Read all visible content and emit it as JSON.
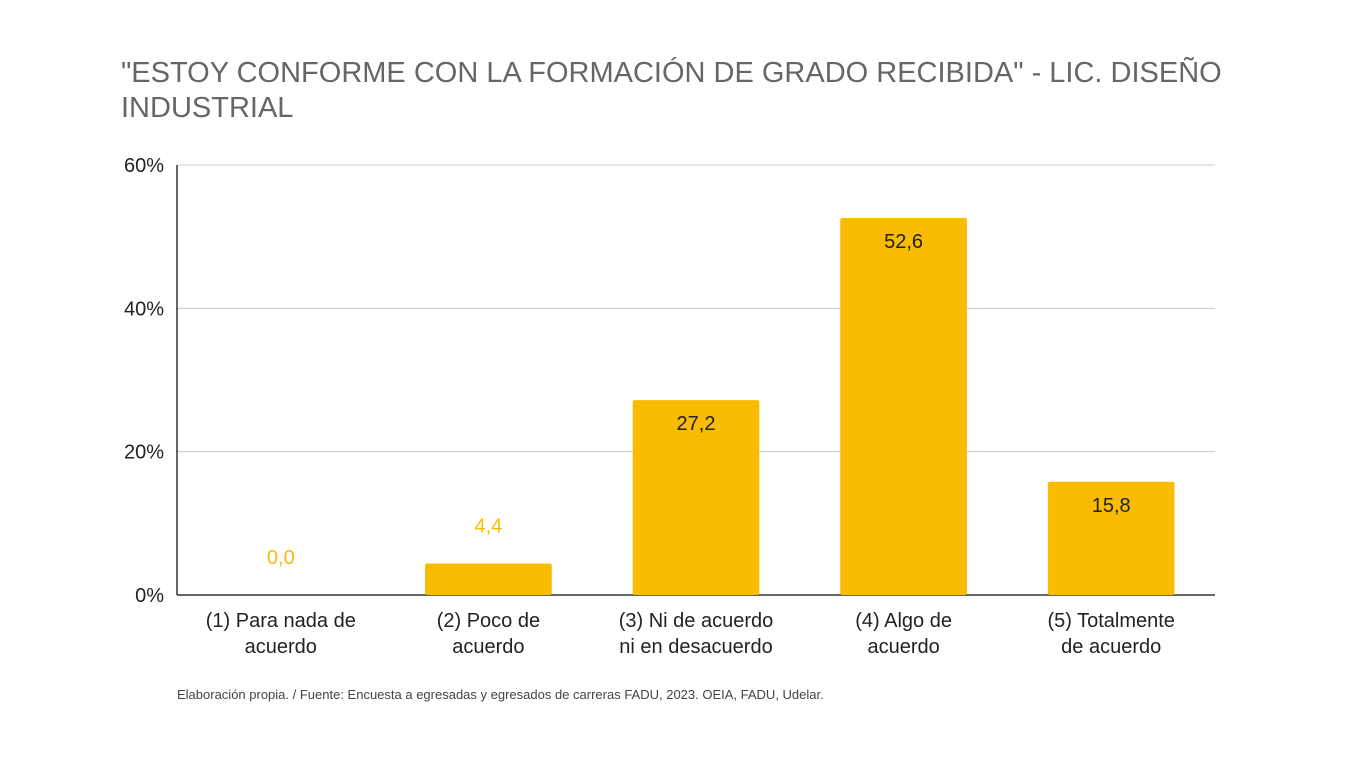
{
  "chart_data": {
    "type": "bar",
    "title": "\"ESTOY CONFORME CON LA FORMACIÓN DE GRADO RECIBIDA\" - LIC. DISEÑO INDUSTRIAL",
    "xlabel": "",
    "ylabel": "",
    "categories": [
      [
        "(1) Para nada de",
        "acuerdo"
      ],
      [
        "(2) Poco de",
        "acuerdo"
      ],
      [
        "(3) Ni de acuerdo",
        "ni en desacuerdo"
      ],
      [
        "(4) Algo de",
        "acuerdo"
      ],
      [
        "(5) Totalmente",
        "de acuerdo"
      ]
    ],
    "values": [
      0.0,
      4.4,
      27.2,
      52.6,
      15.8
    ],
    "value_labels": [
      "0,0",
      "4,4",
      "27,2",
      "52,6",
      "15,8"
    ],
    "ylim": [
      0,
      60
    ],
    "yticks": [
      0,
      20,
      40,
      60
    ],
    "ytick_labels": [
      "0%",
      "20%",
      "40%",
      "60%"
    ],
    "grid": true,
    "legend": "none",
    "colors": {
      "bar": "#F9BC00",
      "label_outside": "#F9BC00",
      "label_inside": "#222222",
      "grid": "#cccccc",
      "axis": "#333333"
    }
  },
  "footer": "Elaboración propia. / Fuente: Encuesta a egresadas y egresados de carreras FADU, 2023. OEIA, FADU, Udelar."
}
